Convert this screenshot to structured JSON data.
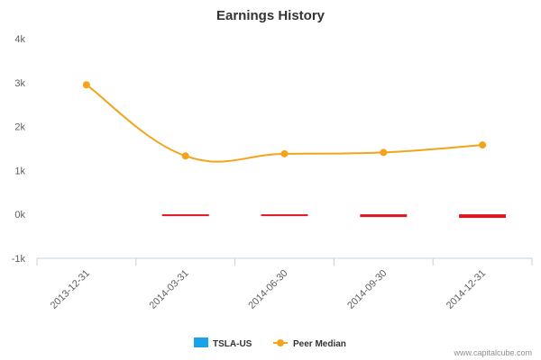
{
  "chart_data": {
    "type": "line",
    "title": "Earnings History",
    "categories": [
      "2013-12-31",
      "2014-03-31",
      "2014-06-30",
      "2014-09-30",
      "2014-12-31"
    ],
    "y_ticks": [
      "-1k",
      "0k",
      "1k",
      "2k",
      "3k",
      "4k"
    ],
    "ylim": [
      -1000,
      4000
    ],
    "legend_position": "bottom-center",
    "series": [
      {
        "name": "TSLA-US",
        "kind": "bar",
        "color": "#1aa3e8",
        "values": [
          null,
          -0.5,
          -0.5,
          -0.5,
          -0.5
        ]
      },
      {
        "name": "Peer Median",
        "kind": "line",
        "color": "#f5a31a",
        "values": [
          2950,
          1330,
          1380,
          1410,
          1580
        ]
      }
    ],
    "estimate_marks": {
      "color": "#e0141e",
      "values": [
        null,
        -20,
        -20,
        -30,
        -40
      ]
    }
  },
  "credit": "www.capitalcube.com"
}
